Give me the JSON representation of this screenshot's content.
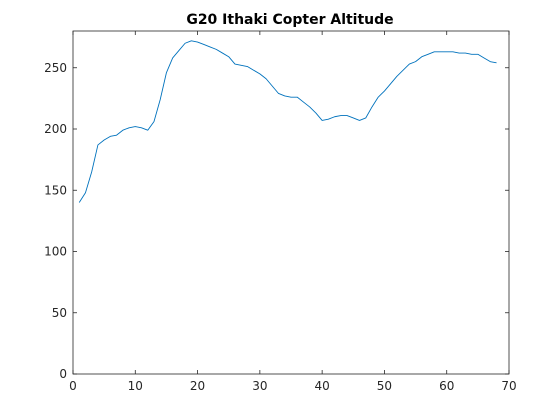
{
  "chart_data": {
    "type": "line",
    "title": "G20 Ithaki Copter Altitude",
    "xlabel": "",
    "ylabel": "",
    "xlim": [
      0,
      70
    ],
    "ylim": [
      0,
      280
    ],
    "xticks": [
      0,
      10,
      20,
      30,
      40,
      50,
      60,
      70
    ],
    "yticks": [
      0,
      50,
      100,
      150,
      200,
      250
    ],
    "grid": false,
    "box": true,
    "colors": {
      "line": "#0072BD",
      "axes": "#262626",
      "background": "#ffffff"
    },
    "series": [
      {
        "x": [
          1,
          2,
          3,
          4,
          5,
          6,
          7,
          8,
          9,
          10,
          11,
          12,
          13,
          14,
          15,
          16,
          17,
          18,
          19,
          20,
          21,
          22,
          23,
          24,
          25,
          26,
          27,
          28,
          29,
          30,
          31,
          32,
          33,
          34,
          35,
          36,
          37,
          38,
          39,
          40,
          41,
          42,
          43,
          44,
          45,
          46,
          47,
          48,
          49,
          50,
          51,
          52,
          53,
          54,
          55,
          56,
          57,
          58,
          59,
          60,
          61,
          62,
          63,
          64,
          65,
          66,
          67,
          68
        ],
        "y": [
          140,
          148,
          165,
          187,
          191,
          194,
          195,
          199,
          201,
          202,
          201,
          199,
          206,
          224,
          246,
          258,
          264,
          270,
          272,
          271,
          269,
          267,
          265,
          262,
          259,
          253,
          252,
          251,
          248,
          245,
          241,
          235,
          229,
          227,
          226,
          226,
          222,
          218,
          213,
          207,
          208,
          210,
          211,
          211,
          209,
          207,
          209,
          218,
          226,
          231,
          237,
          243,
          248,
          253,
          255,
          259,
          261,
          263,
          263,
          263,
          263,
          262,
          262,
          261,
          261,
          258,
          255,
          254
        ]
      }
    ]
  }
}
